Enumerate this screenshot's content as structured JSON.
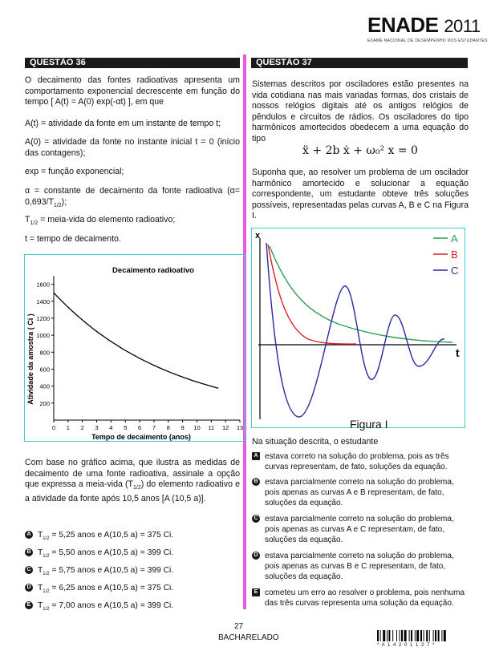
{
  "header": {
    "logo": "ENADE",
    "year": "2011",
    "subtitle": "EXAME NACIONAL DE DESEMPENHO DOS ESTUDANTES"
  },
  "q36": {
    "label": "QUESTÃO 36",
    "intro": "O decaimento das fontes radioativas apresenta um comportamento exponencial decrescente em função do tempo [ A(t) = A(0) exp(-αt) ], em que",
    "defs": [
      "A(t) = atividade da fonte em um instante de tempo t;",
      "A(0) = atividade da fonte no instante inicial t = 0 (início das contagens);",
      "exp = função exponencial;",
      "α = constante de decaimento da fonte radioativa (α= 0,693/T",
      "T",
      "t = tempo de decaimento."
    ],
    "defs_suffix": {
      "alpha_tail": ");",
      "half_sub": "1/2",
      "half_tail": " = meia-vida do elemento radioativo;"
    },
    "chart": {
      "title": "Decaimento radioativo",
      "xlabel": "Tempo de decaimento (anos)",
      "ylabel": "Atividade da amostra ( Ci )",
      "xticks": [
        "0",
        "1",
        "2",
        "3",
        "4",
        "5",
        "6",
        "7",
        "8",
        "9",
        "10",
        "11",
        "12",
        "13"
      ],
      "yticks": [
        "200",
        "400",
        "600",
        "800",
        "1000",
        "1200",
        "1400",
        "1600"
      ]
    },
    "question": "Com base no gráfico acima, que ilustra as medidas de decaimento de uma fonte radioativa, assinale a opção que expressa a meia-vida (T",
    "question_tail": ") do elemento radioativo e a atividade da fonte após 10,5 anos [A (10,5 a)].",
    "options": [
      {
        "letter": "A",
        "pre": "T",
        "sub": "1/2",
        "post": " = 5,25 anos e A(10,5 a) = 375 Ci."
      },
      {
        "letter": "B",
        "pre": "T",
        "sub": "1/2",
        "post": " = 5,50 anos e A(10,5 a) = 399 Ci."
      },
      {
        "letter": "C",
        "pre": "T",
        "sub": "1/2",
        "post": " = 5,75 anos e A(10,5 a) = 399 Ci."
      },
      {
        "letter": "D",
        "pre": "T",
        "sub": "1/2",
        "post": " = 6,25 anos e A(10,5 a) = 375 Ci."
      },
      {
        "letter": "E",
        "pre": "T",
        "sub": "1/2",
        "post": " = 7,00 anos e A(10,5 a) = 399 Ci."
      }
    ]
  },
  "q37": {
    "label": "QUESTÃO 37",
    "intro": "Sistemas descritos por osciladores estão presentes na vida cotidiana nas mais variadas formas, dos cristais de nossos relógios digitais até os antigos relógios de pêndulos e circuitos de rádios. Os osciladores do tipo harmônicos amortecidos obedecem a uma equação do tipo",
    "equation": "ẍ + 2b ẋ + ω₀² x = 0",
    "para": "Suponha que, ao resolver um problema de um oscilador harmônico amortecido e solucionar a equação correspondente, um estudante obteve três soluções possíveis, representadas pelas curvas A, B e C na Figura I.",
    "figure": {
      "ylabel": "x",
      "xlabel": "t",
      "caption": "Figura I",
      "legend": [
        "A",
        "B",
        "C"
      ],
      "colors": {
        "A": "#2aa050",
        "B": "#e02020",
        "C": "#2828a0"
      }
    },
    "lead": "Na situação descrita, o estudante",
    "options": [
      {
        "letter": "A",
        "text": "estava correto na solução do problema, pois as três curvas representam, de fato, soluções da equação."
      },
      {
        "letter": "B",
        "text": "estava parcialmente correto na solução do problema, pois apenas as curvas A e B representam, de fato, soluções da equação."
      },
      {
        "letter": "C",
        "text": "estava parcialmente correto na solução do problema, pois apenas as curvas A e C representam, de fato, soluções da equação."
      },
      {
        "letter": "D",
        "text": "estava parcialmente correto na solução do problema, pois apenas as curvas B e C representam, de fato, soluções da equação."
      },
      {
        "letter": "E",
        "text": "cometeu um erro ao resolver o problema, pois nenhuma das três curvas representa uma solução da equação."
      }
    ]
  },
  "footer": {
    "page": "27",
    "course": "BACHARELADO",
    "barcode_text": "* A 1 4 2 0 1 1 2 7 *"
  }
}
